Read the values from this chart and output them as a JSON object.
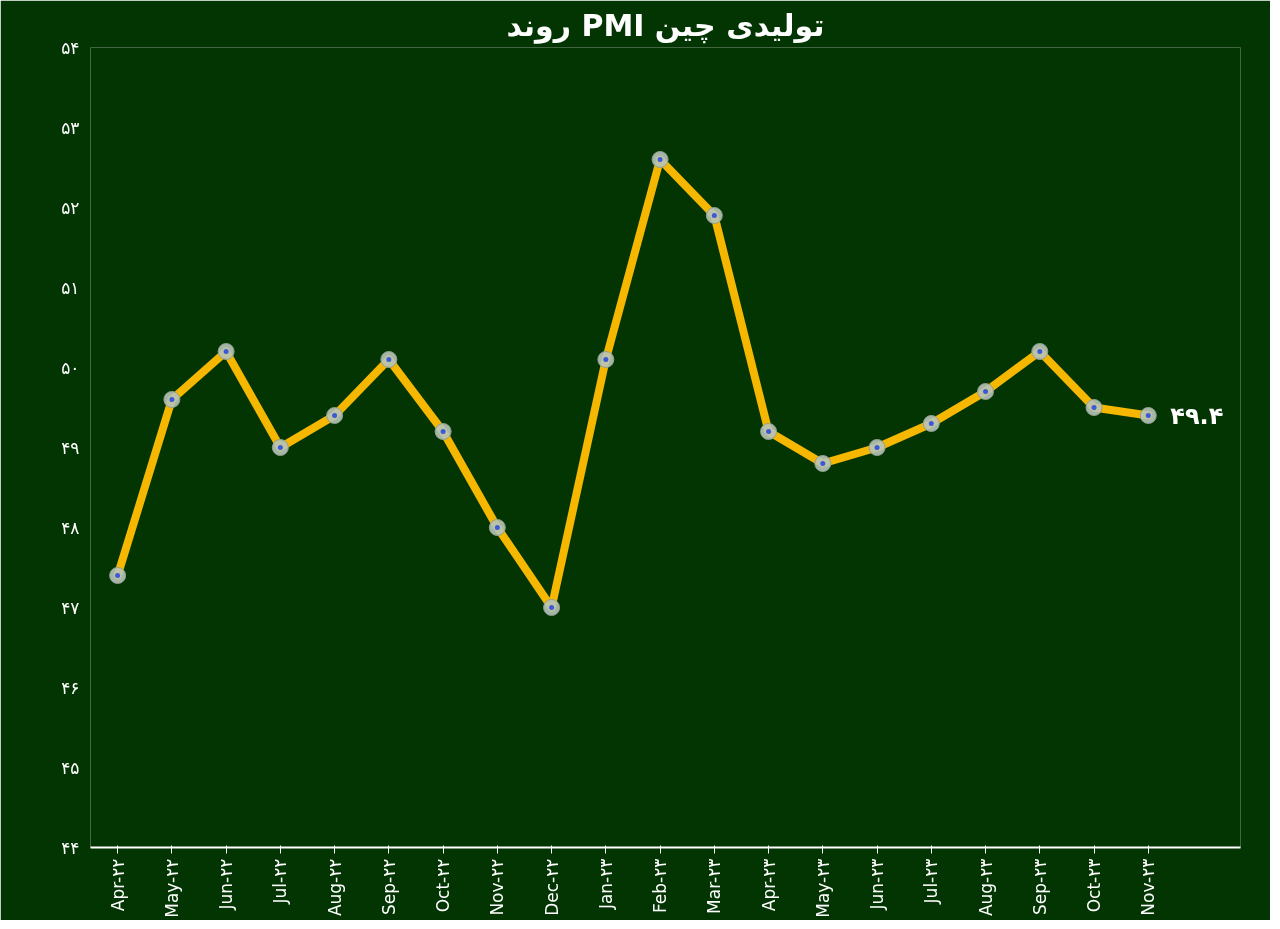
{
  "chart_data": {
    "type": "line",
    "title": "روند PMI تولیدی چین",
    "categories": [
      "Apr-۲۲",
      "May-۲۲",
      "Jun-۲۲",
      "Jul-۲۲",
      "Aug-۲۲",
      "Sep-۲۲",
      "Oct-۲۲",
      "Nov-۲۲",
      "Dec-۲۲",
      "Jan-۲۳",
      "Feb-۲۳",
      "Mar-۲۳",
      "Apr-۲۳",
      "May-۲۳",
      "Jun-۲۳",
      "Jul-۲۳",
      "Aug-۲۳",
      "Sep-۲۳",
      "Oct-۲۳",
      "Nov-۲۳"
    ],
    "series": [
      {
        "color": "#f5b700",
        "values": [
          47.4,
          49.6,
          50.2,
          49.0,
          49.4,
          50.1,
          49.2,
          48.0,
          47.0,
          50.1,
          52.6,
          51.9,
          49.2,
          48.8,
          49.0,
          49.3,
          49.7,
          50.2,
          49.5,
          49.4
        ],
        "value_labels": [
          null,
          null,
          null,
          null,
          null,
          null,
          null,
          null,
          null,
          null,
          null,
          null,
          null,
          null,
          null,
          null,
          null,
          null,
          null,
          "۴۹.۴"
        ]
      }
    ],
    "ylim": [
      44,
      54
    ],
    "yticks": [
      {
        "value": 44,
        "label": "۴۴"
      },
      {
        "value": 45,
        "label": "۴۵"
      },
      {
        "value": 46,
        "label": "۴۶"
      },
      {
        "value": 47,
        "label": "۴۷"
      },
      {
        "value": 48,
        "label": "۴۸"
      },
      {
        "value": 49,
        "label": "۴۹"
      },
      {
        "value": 50,
        "label": "۵۰"
      },
      {
        "value": 51,
        "label": "۵۱"
      },
      {
        "value": 52,
        "label": "۵۲"
      },
      {
        "value": 53,
        "label": "۵۳"
      },
      {
        "value": 54,
        "label": "۵۴"
      }
    ],
    "grid": false,
    "marker": "circle",
    "line_style": "solid"
  }
}
